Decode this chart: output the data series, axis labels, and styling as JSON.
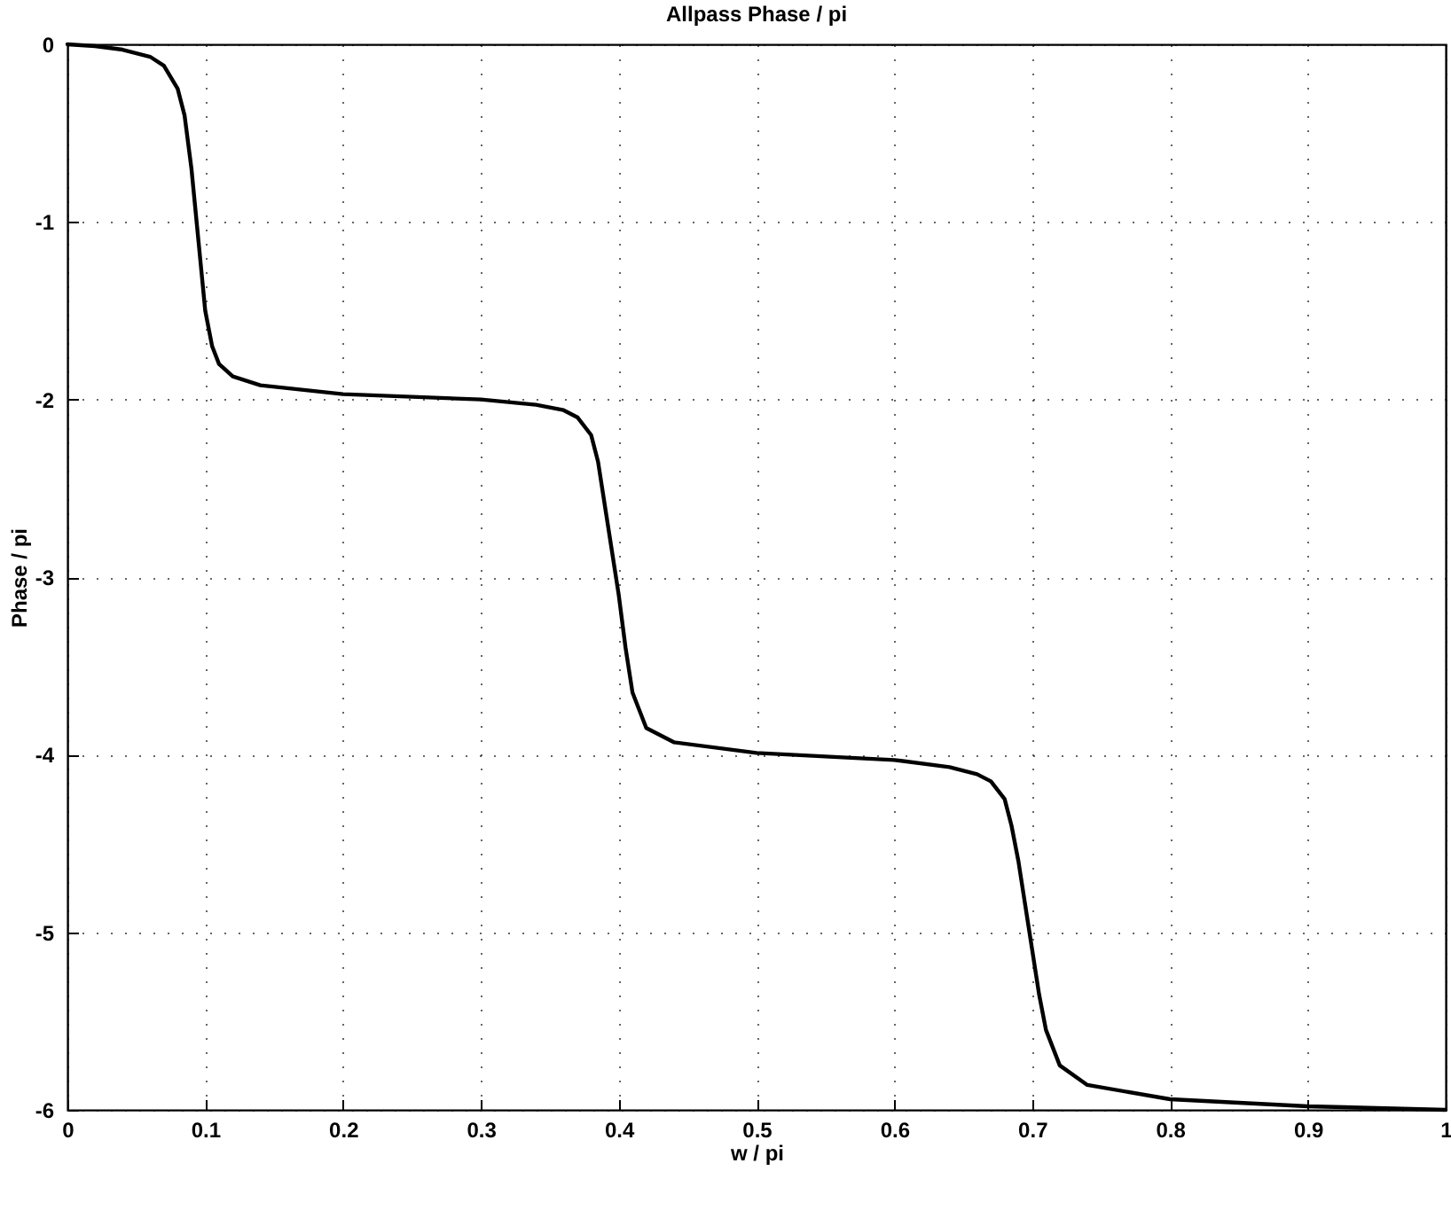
{
  "chart_data": {
    "type": "line",
    "title": "Allpass Phase / pi",
    "xlabel": "w / pi",
    "ylabel": "Phase / pi",
    "x": [
      0,
      0.02,
      0.04,
      0.06,
      0.07,
      0.08,
      0.085,
      0.09,
      0.095,
      0.1,
      0.105,
      0.11,
      0.12,
      0.14,
      0.2,
      0.3,
      0.34,
      0.36,
      0.37,
      0.38,
      0.385,
      0.39,
      0.395,
      0.4,
      0.405,
      0.41,
      0.42,
      0.44,
      0.5,
      0.6,
      0.64,
      0.66,
      0.67,
      0.68,
      0.685,
      0.69,
      0.695,
      0.7,
      0.705,
      0.71,
      0.72,
      0.74,
      0.8,
      0.9,
      1
    ],
    "series": [
      {
        "color": "#000000",
        "values": [
          0,
          -0.01,
          -0.03,
          -0.07,
          -0.12,
          -0.25,
          -0.4,
          -0.7,
          -1.1,
          -1.5,
          -1.7,
          -1.8,
          -1.87,
          -1.92,
          -1.97,
          -2.0,
          -2.03,
          -2.06,
          -2.1,
          -2.2,
          -2.35,
          -2.6,
          -2.85,
          -3.1,
          -3.4,
          -3.65,
          -3.85,
          -3.93,
          -3.99,
          -4.03,
          -4.07,
          -4.11,
          -4.15,
          -4.25,
          -4.4,
          -4.6,
          -4.85,
          -5.1,
          -5.35,
          -5.55,
          -5.75,
          -5.86,
          -5.94,
          -5.98,
          -6.0
        ]
      }
    ],
    "xlim": [
      0,
      1
    ],
    "ylim": [
      -6,
      0
    ],
    "xticks": [
      0,
      0.1,
      0.2,
      0.3,
      0.4,
      0.5,
      0.6,
      0.7,
      0.8,
      0.9,
      1
    ],
    "yticks": [
      -6,
      -5,
      -4,
      -3,
      -2,
      -1,
      0
    ],
    "grid": true,
    "line_style": "solid",
    "marker": "none"
  }
}
